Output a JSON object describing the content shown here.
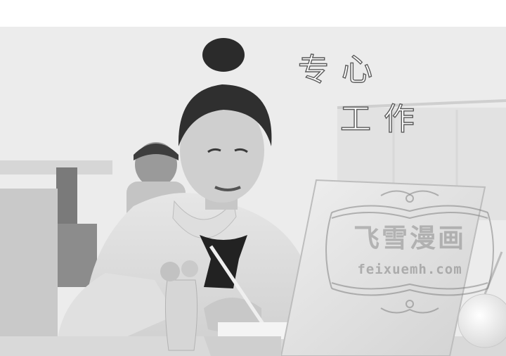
{
  "caption": {
    "line1": "专心",
    "line2": "工作"
  },
  "watermark": {
    "title": "飞雪漫画",
    "url": "feixuemh.com"
  },
  "colors": {
    "accent": "#5a5a5a"
  }
}
